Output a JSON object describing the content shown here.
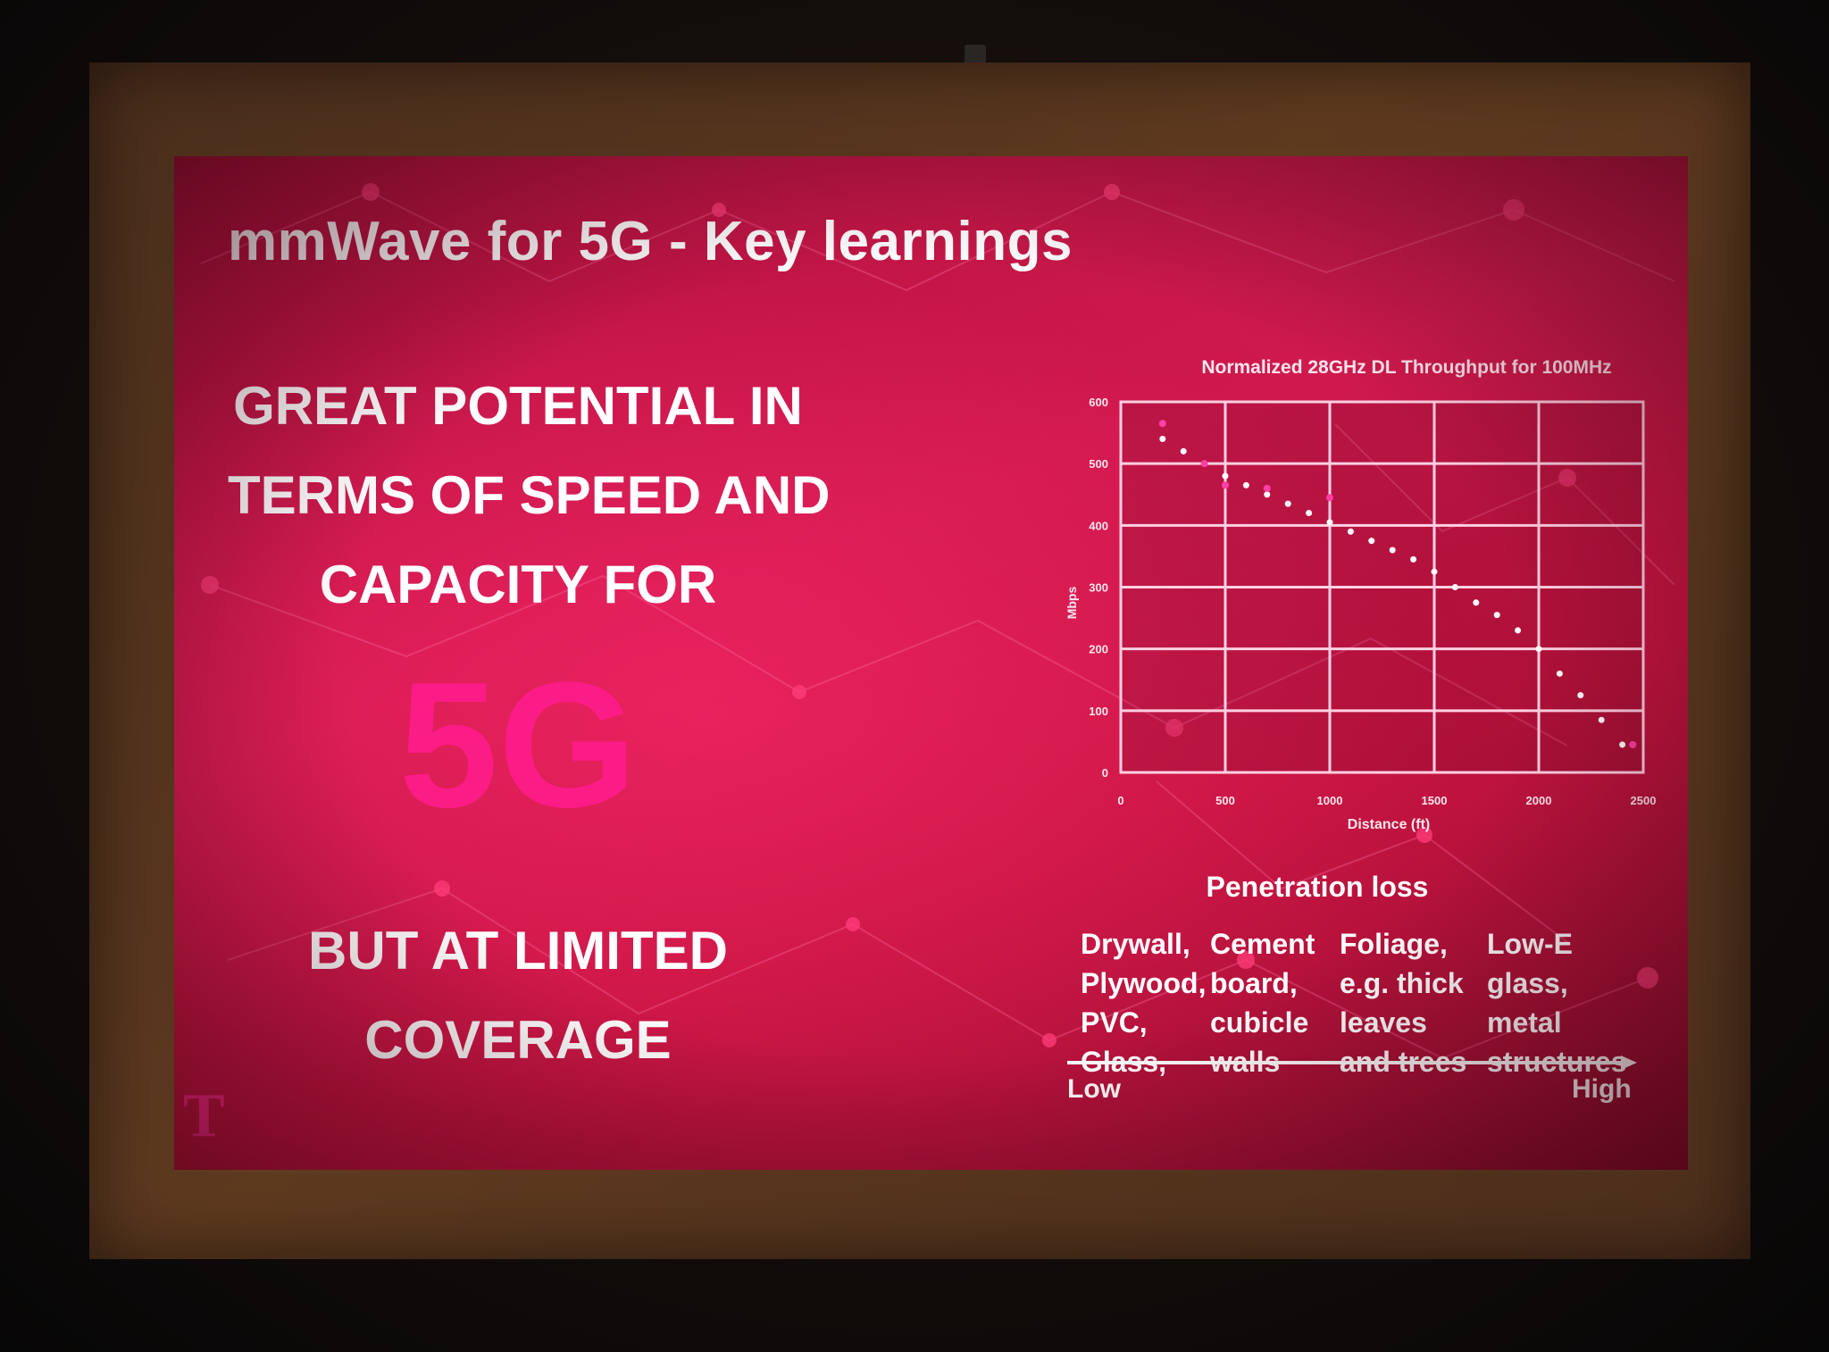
{
  "slide": {
    "title": "mmWave for 5G  - Key learnings",
    "headline_lines": [
      "GREAT POTENTIAL IN",
      "TERMS OF SPEED AND",
      "CAPACITY FOR"
    ],
    "big_text": "5G",
    "coverage_lines": [
      "BUT AT LIMITED",
      "COVERAGE"
    ],
    "logo": "T",
    "colors": {
      "background": "#c8174a",
      "accent_magenta": "#ff1c8c",
      "text": "#ffffff"
    }
  },
  "penetration": {
    "title": "Penetration loss",
    "columns": [
      [
        "Drywall,",
        "Plywood,",
        "PVC,",
        "Glass,"
      ],
      [
        "Cement",
        "board,",
        "cubicle",
        "walls"
      ],
      [
        "Foliage,",
        "e.g. thick",
        "leaves",
        "and trees"
      ],
      [
        "Low-E",
        "glass,",
        "metal",
        "structures"
      ]
    ],
    "low_label": "Low",
    "high_label": "High"
  },
  "chart_data": {
    "type": "scatter",
    "title": "Normalized 28GHz DL Throughput  for 100MHz",
    "xlabel": "Distance (ft)",
    "ylabel": "Mbps",
    "xlim": [
      0,
      2500
    ],
    "ylim": [
      0,
      600
    ],
    "x_ticks": [
      "0",
      "500",
      "1000",
      "1500",
      "2000",
      "2500"
    ],
    "y_ticks": [
      "0",
      "100",
      "200",
      "300",
      "400",
      "500",
      "600"
    ],
    "grid": true,
    "series": [
      {
        "marker": "dot",
        "color": "#ffffff",
        "x": [
          200,
          300,
          400,
          500,
          600,
          700,
          800,
          900,
          1000,
          1100,
          1200,
          1300,
          1400,
          1500,
          1600,
          1700,
          1800,
          1900,
          2000,
          2100,
          2200,
          2300,
          2400
        ],
        "y": [
          540,
          520,
          500,
          480,
          465,
          450,
          435,
          420,
          405,
          390,
          375,
          360,
          345,
          325,
          300,
          275,
          255,
          230,
          200,
          160,
          125,
          85,
          45
        ]
      },
      {
        "marker": "dot",
        "color": "#ff3fa6",
        "x": [
          200,
          400,
          500,
          700,
          1000,
          2450
        ],
        "y": [
          565,
          500,
          465,
          460,
          445,
          45
        ]
      }
    ]
  }
}
